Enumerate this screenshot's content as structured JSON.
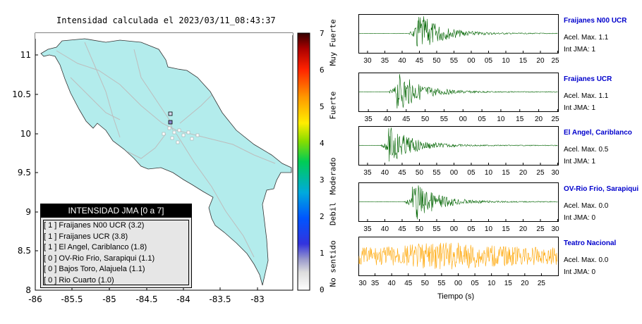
{
  "map": {
    "title": "Intensidad calculada el 2023/03/11_08:43:37",
    "x_ticks": [
      "-86",
      "-85.5",
      "-85",
      "-84.5",
      "-84",
      "-83.5",
      "-83"
    ],
    "y_ticks": [
      "11",
      "10.5",
      "10",
      "9.5",
      "9",
      "8.5",
      "8"
    ],
    "colors": {
      "land": "#b3ecec",
      "ocean": "#ffffff",
      "roads": "#bbbbbb",
      "border": "#333333"
    }
  },
  "legend": {
    "header": "INTENSIDAD JMA [0 a 7]",
    "items": [
      "[ 1 ]  Fraijanes N00 UCR (3.2)",
      "[ 1 ]  Fraijanes UCR (3.8)",
      "[ 1 ]  El Angel, Cariblanco (1.8)",
      "[ 0 ]  OV-Rio Frio, Sarapiqui (1.1)",
      "[ 0 ]  Bajos Toro, Alajuela (1.1)",
      "[ 0 ]  Rio Cuarto (1.0)"
    ]
  },
  "colorbar": {
    "ticks": [
      "7",
      "6",
      "5",
      "4",
      "3",
      "2",
      "1",
      "0"
    ],
    "labels": [
      "Muy Fuerte",
      "Fuerte",
      "Moderado",
      "Debil",
      "No sentido"
    ]
  },
  "waveforms": {
    "xlabel": "Tiempo (s)",
    "panels": [
      {
        "name": "Fraijanes N00 UCR",
        "accel": "Acel. Max. 1.1",
        "jma": "Int JMA: 1",
        "color": "#006400",
        "ticks": [
          "30",
          "35",
          "40",
          "45",
          "50",
          "55",
          "00",
          "05",
          "10",
          "15",
          "20",
          "25"
        ]
      },
      {
        "name": "Fraijanes UCR",
        "accel": "Acel. Max. 1.1",
        "jma": "Int JMA: 1",
        "color": "#006400",
        "ticks": [
          "35",
          "40",
          "45",
          "50",
          "55",
          "00",
          "05",
          "10",
          "15",
          "20",
          "25"
        ]
      },
      {
        "name": "El Angel, Cariblanco",
        "accel": "Acel. Max. 0.5",
        "jma": "Int JMA: 1",
        "color": "#006400",
        "ticks": [
          "35",
          "40",
          "45",
          "50",
          "55",
          "00",
          "05",
          "10",
          "15",
          "20",
          "25",
          "30"
        ]
      },
      {
        "name": "OV-Rio Frio, Sarapiqui",
        "accel": "Acel. Max. 0.0",
        "jma": "Int JMA: 0",
        "color": "#006400",
        "ticks": [
          "35",
          "40",
          "45",
          "50",
          "55",
          "00",
          "05",
          "10",
          "15",
          "20",
          "25",
          "30"
        ]
      },
      {
        "name": "Teatro Nacional",
        "accel": "Acel. Max. 0.0",
        "jma": "Int JMA: 0",
        "color": "#ffa500",
        "ticks": [
          "30",
          "35",
          "40",
          "45",
          "50",
          "55",
          "00",
          "05",
          "10",
          "15",
          "20",
          "25"
        ]
      }
    ]
  }
}
